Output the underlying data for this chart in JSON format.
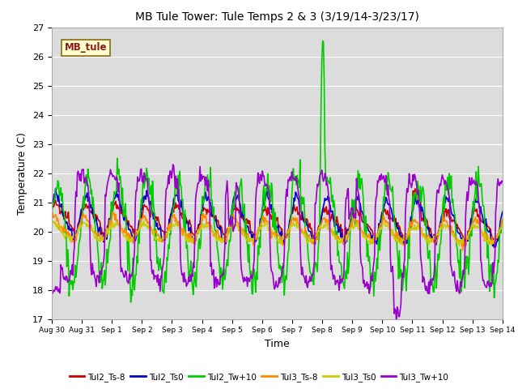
{
  "title": "MB Tule Tower: Tule Temps 2 & 3 (3/19/14-3/23/17)",
  "xlabel": "Time",
  "ylabel": "Temperature (C)",
  "ylim": [
    17.0,
    27.0
  ],
  "yticks": [
    17.0,
    18.0,
    19.0,
    20.0,
    21.0,
    22.0,
    23.0,
    24.0,
    25.0,
    26.0,
    27.0
  ],
  "bg_color": "#dcdcdc",
  "legend_label": "MB_tule",
  "legend_box_facecolor": "#ffffcc",
  "legend_box_edge": "#8b6914",
  "series": [
    {
      "label": "Tul2_Ts-8",
      "color": "#cc0000"
    },
    {
      "label": "Tul2_Ts0",
      "color": "#0000cc"
    },
    {
      "label": "Tul2_Tw+10",
      "color": "#00cc00"
    },
    {
      "label": "Tul3_Ts-8",
      "color": "#ff8800"
    },
    {
      "label": "Tul3_Ts0",
      "color": "#cccc00"
    },
    {
      "label": "Tul3_Tw+10",
      "color": "#9900cc"
    }
  ],
  "xtick_labels": [
    "Aug 30",
    "Aug 31",
    "Sep 1",
    "Sep 2",
    "Sep 3",
    "Sep 4",
    "Sep 5",
    "Sep 6",
    "Sep 7",
    "Sep 8",
    "Sep 9",
    "Sep 10",
    "Sep 11",
    "Sep 12",
    "Sep 13",
    "Sep 14"
  ]
}
